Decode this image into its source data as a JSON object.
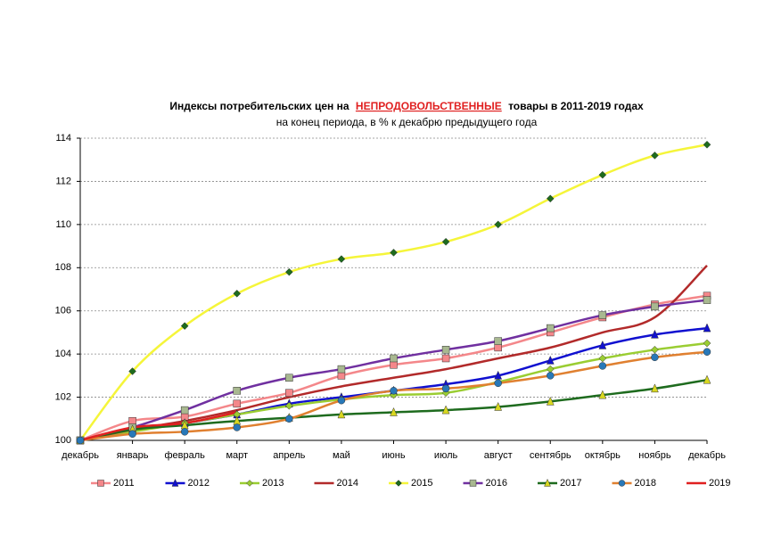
{
  "chart_data": {
    "type": "line",
    "title": [
      "Индексы потребительских цен на",
      "НЕПРОДОВОЛЬСТВЕННЫЕ",
      "товары в 2011-2019 годах"
    ],
    "title_highlight_color": "#e02020",
    "subtitle": "на конец периода, в % к декабрю предыдущего года",
    "categories": [
      "декабрь",
      "январь",
      "февраль",
      "март",
      "апрель",
      "май",
      "июнь",
      "июль",
      "август",
      "сентябрь",
      "октябрь",
      "ноябрь",
      "декабрь"
    ],
    "ylim": [
      100,
      114
    ],
    "yticks": [
      100,
      102,
      104,
      106,
      108,
      110,
      112,
      114
    ],
    "grid": true,
    "legend": "bottom",
    "series": [
      {
        "name": "2011",
        "color": "#f4878a",
        "marker": "square",
        "marker_color": "#f4878a",
        "values": [
          100,
          100.9,
          101.1,
          101.7,
          102.2,
          103.0,
          103.5,
          103.8,
          104.3,
          105.0,
          105.7,
          106.3,
          106.7
        ]
      },
      {
        "name": "2012",
        "color": "#1010d0",
        "marker": "triangle",
        "marker_color": "#1010d0",
        "values": [
          100,
          100.5,
          100.8,
          101.2,
          101.7,
          102.0,
          102.3,
          102.6,
          103.0,
          103.7,
          104.4,
          104.9,
          105.2
        ]
      },
      {
        "name": "2013",
        "color": "#9acd32",
        "marker": "diamond",
        "marker_color": "#9acd32",
        "values": [
          100,
          100.4,
          100.8,
          101.2,
          101.6,
          101.9,
          102.1,
          102.2,
          102.7,
          103.3,
          103.8,
          104.2,
          104.5
        ]
      },
      {
        "name": "2014",
        "color": "#b22a2a",
        "marker": "none",
        "marker_color": "#b22a2a",
        "values": [
          100,
          100.5,
          100.9,
          101.4,
          102.0,
          102.5,
          102.9,
          103.3,
          103.8,
          104.3,
          105.0,
          105.7,
          108.1
        ]
      },
      {
        "name": "2015",
        "color": "#f5f53a",
        "marker": "diamond",
        "marker_color": "#1e6b1e",
        "values": [
          100,
          103.2,
          105.3,
          106.8,
          107.8,
          108.4,
          108.7,
          109.2,
          110.0,
          111.2,
          112.3,
          113.2,
          113.7
        ]
      },
      {
        "name": "2016",
        "color": "#7030a0",
        "marker": "square",
        "marker_color": "#a8b890",
        "values": [
          100,
          100.6,
          101.4,
          102.3,
          102.9,
          103.3,
          103.8,
          104.2,
          104.6,
          105.2,
          105.8,
          106.2,
          106.5
        ]
      },
      {
        "name": "2017",
        "color": "#1e6b1e",
        "marker": "triangle",
        "marker_color": "#d8d820",
        "values": [
          100,
          100.5,
          100.7,
          100.9,
          101.05,
          101.2,
          101.3,
          101.4,
          101.55,
          101.8,
          102.1,
          102.4,
          102.8
        ]
      },
      {
        "name": "2018",
        "color": "#e08030",
        "marker": "circle",
        "marker_color": "#2878b8",
        "values": [
          100,
          100.3,
          100.4,
          100.6,
          101.0,
          101.85,
          102.3,
          102.4,
          102.65,
          103.0,
          103.45,
          103.85,
          104.1
        ]
      },
      {
        "name": "2019",
        "color": "#e02020",
        "marker": "none",
        "marker_color": "#e02020",
        "values": [
          100,
          100.6,
          100.8,
          101.3,
          null,
          null,
          null,
          null,
          null,
          null,
          null,
          null,
          null
        ]
      }
    ]
  }
}
